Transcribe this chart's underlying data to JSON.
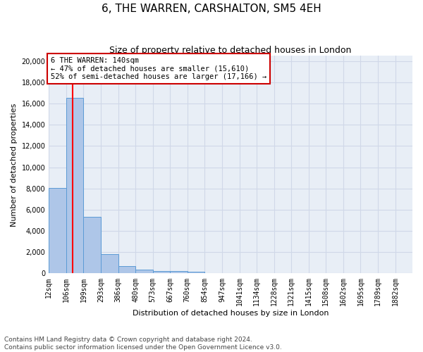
{
  "title": "6, THE WARREN, CARSHALTON, SM5 4EH",
  "subtitle": "Size of property relative to detached houses in London",
  "xlabel": "Distribution of detached houses by size in London",
  "ylabel": "Number of detached properties",
  "bin_labels": [
    "12sqm",
    "106sqm",
    "199sqm",
    "293sqm",
    "386sqm",
    "480sqm",
    "573sqm",
    "667sqm",
    "760sqm",
    "854sqm",
    "947sqm",
    "1041sqm",
    "1134sqm",
    "1228sqm",
    "1321sqm",
    "1415sqm",
    "1508sqm",
    "1602sqm",
    "1695sqm",
    "1789sqm",
    "1882sqm"
  ],
  "bin_edges": [
    12,
    106,
    199,
    293,
    386,
    480,
    573,
    667,
    760,
    854,
    947,
    1041,
    1134,
    1228,
    1321,
    1415,
    1508,
    1602,
    1695,
    1789,
    1882,
    1975
  ],
  "bar_heights": [
    8050,
    16550,
    5300,
    1850,
    700,
    350,
    250,
    200,
    150,
    50,
    20,
    10,
    5,
    2,
    1,
    1,
    1,
    1,
    1,
    1,
    0
  ],
  "bar_color": "#aec6e8",
  "bar_edge_color": "#5b9bd5",
  "red_line_x": 140,
  "annotation_title": "6 THE WARREN: 140sqm",
  "annotation_line1": "← 47% of detached houses are smaller (15,610)",
  "annotation_line2": "52% of semi-detached houses are larger (17,166) →",
  "annotation_box_color": "#ffffff",
  "annotation_box_edge": "#cc0000",
  "ylim": [
    0,
    20500
  ],
  "yticks": [
    0,
    2000,
    4000,
    6000,
    8000,
    10000,
    12000,
    14000,
    16000,
    18000,
    20000
  ],
  "grid_color": "#d0d8e8",
  "background_color": "#e8eef6",
  "footer_line1": "Contains HM Land Registry data © Crown copyright and database right 2024.",
  "footer_line2": "Contains public sector information licensed under the Open Government Licence v3.0.",
  "title_fontsize": 11,
  "subtitle_fontsize": 9,
  "axis_label_fontsize": 8,
  "tick_fontsize": 7,
  "annotation_fontsize": 7.5,
  "footer_fontsize": 6.5
}
